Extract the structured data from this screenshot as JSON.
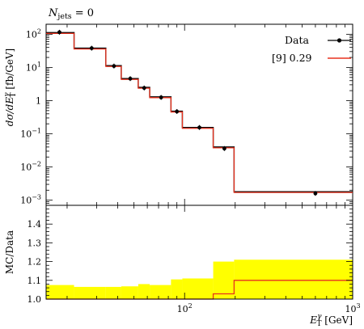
{
  "chart_data": [
    {
      "type": "line",
      "annotation": {
        "text": "N",
        "sub": "jets",
        "rest": " = 0"
      },
      "xlabel": {
        "base": "E",
        "sup": "γ",
        "sub": "T",
        "unit": " [GeV]"
      },
      "ylabel": {
        "a": "dσ/dE",
        "sup": "γ",
        "sub": "T",
        "unit": " [fb/GeV]"
      },
      "xscale": "log",
      "yscale": "log",
      "xlim": [
        15,
        1000
      ],
      "ylim": [
        0.0007,
        200
      ],
      "x_ticks": [
        {
          "value": 100,
          "label": "10",
          "exp": "2"
        },
        {
          "value": 1000,
          "label": "10",
          "exp": "3"
        }
      ],
      "y_ticks": [
        {
          "value": 0.001,
          "label": "10",
          "exp": "−3"
        },
        {
          "value": 0.01,
          "label": "10",
          "exp": "−2"
        },
        {
          "value": 0.1,
          "label": "10",
          "exp": "−1"
        },
        {
          "value": 1,
          "label": "1",
          "exp": ""
        },
        {
          "value": 10,
          "label": "10",
          "exp": "1"
        },
        {
          "value": 100,
          "label": "10",
          "exp": "2"
        }
      ],
      "legend": {
        "placement": "top-right"
      },
      "series": [
        {
          "name": "Data",
          "style": "points",
          "color": "#000000",
          "x": [
            18,
            28,
            38,
            47.5,
            57.5,
            72.5,
            90,
            122.5,
            172.5,
            600
          ],
          "y": [
            115,
            38,
            11,
            4.6,
            2.4,
            1.25,
            0.47,
            0.155,
            0.036,
            0.0016
          ]
        },
        {
          "name": "[9] 0.29",
          "style": "step",
          "color": "#e8321e",
          "bin_edges": [
            15,
            22,
            34,
            42,
            53,
            62,
            83,
            97,
            148,
            197,
            1000
          ],
          "values": [
            112,
            38,
            11.3,
            4.6,
            2.5,
            1.3,
            0.48,
            0.155,
            0.04,
            0.0018
          ]
        }
      ]
    },
    {
      "type": "area",
      "ylabel": "MC/Data",
      "xscale": "log",
      "xlim": [
        15,
        1000
      ],
      "ylim": [
        1.0,
        1.5
      ],
      "y_ticks": [
        1.0,
        1.1,
        1.2,
        1.3,
        1.4
      ],
      "band_color": "#ffff00",
      "series": [
        {
          "name": "uncertainty band",
          "bin_edges": [
            15,
            22,
            34,
            42,
            53,
            62,
            83,
            97,
            148,
            197,
            1000
          ],
          "upper": [
            1.075,
            1.065,
            1.065,
            1.068,
            1.08,
            1.075,
            1.105,
            1.11,
            1.2,
            1.21
          ]
        },
        {
          "name": "ratio",
          "color": "#e8321e",
          "bin_edges": [
            15,
            22,
            34,
            42,
            53,
            62,
            83,
            97,
            148,
            197,
            1000
          ],
          "values": [
            1.0,
            1.0,
            1.0,
            1.0,
            1.0,
            1.0,
            1.0,
            1.0,
            1.028,
            1.1
          ]
        }
      ]
    }
  ]
}
